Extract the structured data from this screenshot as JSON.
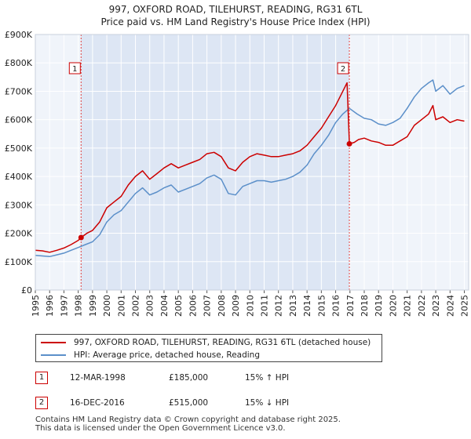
{
  "title": {
    "line1": "997, OXFORD ROAD, TILEHURST, READING, RG31 6TL",
    "line2": "Price paid vs. HM Land Registry's House Price Index (HPI)"
  },
  "chart_data": {
    "type": "line",
    "title": "997, OXFORD ROAD, TILEHURST, READING, RG31 6TL - Price paid vs. HM Land Registry's House Price Index (HPI)",
    "xlabel": "",
    "ylabel": "",
    "xlim": [
      1995.0,
      2025.3
    ],
    "ylim": [
      0,
      900000
    ],
    "x_ticks": [
      "1995",
      "1996",
      "1997",
      "1998",
      "1999",
      "2000",
      "2001",
      "2002",
      "2003",
      "2004",
      "2005",
      "2006",
      "2007",
      "2008",
      "2009",
      "2010",
      "2011",
      "2012",
      "2013",
      "2014",
      "2015",
      "2016",
      "2017",
      "2018",
      "2019",
      "2020",
      "2021",
      "2022",
      "2023",
      "2024",
      "2025"
    ],
    "y_ticks": [
      0,
      100000,
      200000,
      300000,
      400000,
      500000,
      600000,
      700000,
      800000,
      900000
    ],
    "y_tick_labels": [
      "£0",
      "£100K",
      "£200K",
      "£300K",
      "£400K",
      "£500K",
      "£600K",
      "£700K",
      "£800K",
      "£900K"
    ],
    "grid": true,
    "shaded_span": [
      1998.2,
      2016.96
    ],
    "series": [
      {
        "name": "997, OXFORD ROAD, TILEHURST, READING, RG31 6TL (detached house)",
        "color": "#cc0000",
        "x": [
          1995.0,
          1995.5,
          1996.0,
          1996.5,
          1997.0,
          1997.5,
          1998.0,
          1998.2,
          1998.6,
          1999.0,
          1999.5,
          2000.0,
          2000.5,
          2001.0,
          2001.5,
          2002.0,
          2002.5,
          2003.0,
          2003.5,
          2004.0,
          2004.5,
          2005.0,
          2005.5,
          2006.0,
          2006.5,
          2007.0,
          2007.5,
          2008.0,
          2008.5,
          2009.0,
          2009.5,
          2010.0,
          2010.5,
          2011.0,
          2011.5,
          2012.0,
          2012.5,
          2013.0,
          2013.5,
          2014.0,
          2014.5,
          2015.0,
          2015.5,
          2016.0,
          2016.5,
          2016.8,
          2016.96,
          2017.3,
          2017.6,
          2018.0,
          2018.5,
          2019.0,
          2019.5,
          2020.0,
          2020.5,
          2021.0,
          2021.5,
          2022.0,
          2022.5,
          2022.8,
          2023.0,
          2023.5,
          2024.0,
          2024.5,
          2025.0
        ],
        "values": [
          140000,
          138000,
          133000,
          140000,
          148000,
          160000,
          175000,
          185000,
          200000,
          210000,
          240000,
          290000,
          310000,
          330000,
          370000,
          400000,
          420000,
          390000,
          410000,
          430000,
          445000,
          430000,
          440000,
          450000,
          460000,
          480000,
          485000,
          470000,
          430000,
          420000,
          450000,
          470000,
          480000,
          475000,
          470000,
          470000,
          475000,
          480000,
          490000,
          510000,
          540000,
          570000,
          610000,
          650000,
          700000,
          730000,
          515000,
          520000,
          530000,
          535000,
          525000,
          520000,
          510000,
          510000,
          525000,
          540000,
          580000,
          600000,
          620000,
          650000,
          600000,
          610000,
          590000,
          600000,
          595000
        ]
      },
      {
        "name": "HPI: Average price, detached house, Reading",
        "color": "#5b8fc9",
        "x": [
          1995.0,
          1995.5,
          1996.0,
          1996.5,
          1997.0,
          1997.5,
          1998.0,
          1998.5,
          1999.0,
          1999.5,
          2000.0,
          2000.5,
          2001.0,
          2001.5,
          2002.0,
          2002.5,
          2003.0,
          2003.5,
          2004.0,
          2004.5,
          2005.0,
          2005.5,
          2006.0,
          2006.5,
          2007.0,
          2007.5,
          2008.0,
          2008.5,
          2009.0,
          2009.5,
          2010.0,
          2010.5,
          2011.0,
          2011.5,
          2012.0,
          2012.5,
          2013.0,
          2013.5,
          2014.0,
          2014.5,
          2015.0,
          2015.5,
          2016.0,
          2016.5,
          2016.96,
          2017.5,
          2018.0,
          2018.5,
          2019.0,
          2019.5,
          2020.0,
          2020.5,
          2021.0,
          2021.5,
          2022.0,
          2022.5,
          2022.8,
          2023.0,
          2023.5,
          2024.0,
          2024.5,
          2025.0
        ],
        "values": [
          122000,
          120000,
          118000,
          124000,
          130000,
          140000,
          150000,
          160000,
          170000,
          195000,
          240000,
          265000,
          280000,
          310000,
          340000,
          360000,
          335000,
          345000,
          360000,
          370000,
          345000,
          355000,
          365000,
          375000,
          395000,
          405000,
          390000,
          340000,
          335000,
          365000,
          375000,
          385000,
          385000,
          380000,
          385000,
          390000,
          400000,
          415000,
          440000,
          480000,
          510000,
          545000,
          590000,
          620000,
          640000,
          620000,
          605000,
          600000,
          585000,
          580000,
          590000,
          605000,
          640000,
          680000,
          710000,
          730000,
          740000,
          700000,
          720000,
          690000,
          710000,
          720000
        ]
      }
    ],
    "annotations": [
      {
        "label": "1",
        "x": 1998.2,
        "y": 185000
      },
      {
        "label": "2",
        "x": 2016.96,
        "y": 515000
      }
    ]
  },
  "legend": {
    "property_label": "997, OXFORD ROAD, TILEHURST, READING, RG31 6TL (detached house)",
    "hpi_label": "HPI: Average price, detached house, Reading",
    "property_color": "#cc0000",
    "hpi_color": "#5b8fc9"
  },
  "sales": [
    {
      "num": "1",
      "date": "12-MAR-1998",
      "price": "£185,000",
      "hpi": "15% ↑ HPI"
    },
    {
      "num": "2",
      "date": "16-DEC-2016",
      "price": "£515,000",
      "hpi": "15% ↓ HPI"
    }
  ],
  "footer": {
    "line1": "Contains HM Land Registry data © Crown copyright and database right 2025.",
    "line2": "This data is licensed under the Open Government Licence v3.0."
  }
}
